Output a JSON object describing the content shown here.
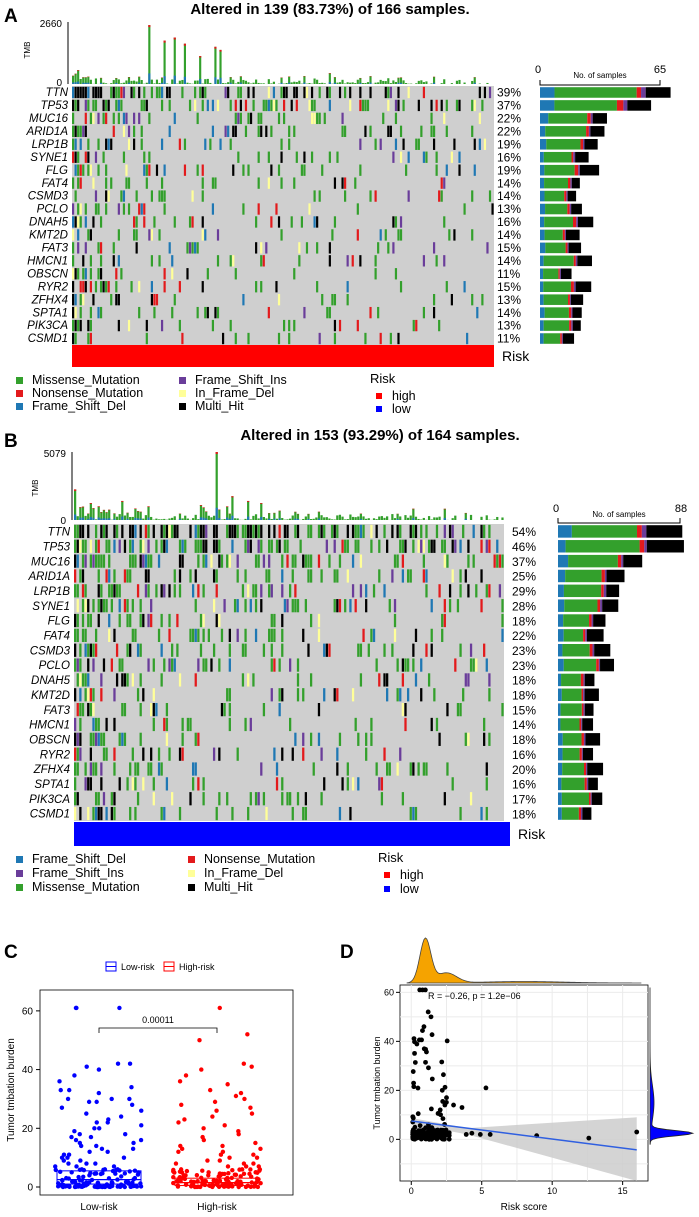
{
  "colors": {
    "missense": "#33a02c",
    "nonsense": "#e31a1c",
    "frame_shift_del": "#1f78b4",
    "frame_shift_ins": "#6a3d9a",
    "in_frame_del": "#ffff99",
    "multi_hit": "#000000",
    "risk_high": "#ff0000",
    "risk_low": "#0000ff",
    "density": "#f5a300",
    "lowrisk_box": "#0000ff",
    "highrisk_box": "#ff0000",
    "fit_line": "#2f5fe0",
    "empty_cell": "#cfcfcf"
  },
  "chart_data": [
    {
      "panel": "A",
      "type": "oncoplot",
      "title": "Altered in 139 (83.73%) of 166 samples.",
      "tmb_label": "TMB",
      "tmb_axis": [
        "2660",
        "0"
      ],
      "tmb_max": 2660,
      "samples_axis_label": "No. of samples",
      "samples_axis": [
        "0",
        "65"
      ],
      "samples_max": 65,
      "n_samples": 166,
      "genes": [
        "TTN",
        "TP53",
        "MUC16",
        "ARID1A",
        "LRP1B",
        "SYNE1",
        "FLG",
        "FAT4",
        "CSMD3",
        "PCLO",
        "DNAH5",
        "KMT2D",
        "FAT3",
        "HMCN1",
        "OBSCN",
        "RYR2",
        "ZFHX4",
        "SPTA1",
        "PIK3CA",
        "CSMD1"
      ],
      "percents": [
        "39%",
        "37%",
        "22%",
        "22%",
        "19%",
        "16%",
        "19%",
        "14%",
        "14%",
        "13%",
        "16%",
        "14%",
        "15%",
        "14%",
        "11%",
        "15%",
        "13%",
        "14%",
        "13%",
        "11%"
      ],
      "gene_counts": [
        65,
        61,
        36,
        36,
        32,
        27,
        31,
        23,
        23,
        22,
        27,
        23,
        25,
        23,
        18,
        25,
        22,
        23,
        22,
        18
      ],
      "risk_label": "Risk",
      "risk_value": "high",
      "legend": [
        "Missense_Mutation",
        "Nonsense_Mutation",
        "Frame_Shift_Del",
        "Frame_Shift_Ins",
        "In_Frame_Del",
        "Multi_Hit"
      ],
      "legend_keys": [
        "missense",
        "nonsense",
        "frame_shift_del",
        "frame_shift_ins",
        "in_frame_del",
        "multi_hit"
      ],
      "risk_legend_title": "Risk",
      "risk_legend": [
        "high",
        "low"
      ]
    },
    {
      "panel": "B",
      "type": "oncoplot",
      "title": "Altered in 153 (93.29%) of 164 samples.",
      "tmb_label": "TMB",
      "tmb_axis": [
        "5079",
        "0"
      ],
      "tmb_max": 5079,
      "samples_axis_label": "No. of samples",
      "samples_axis": [
        "0",
        "88"
      ],
      "samples_max": 88,
      "n_samples": 164,
      "genes": [
        "TTN",
        "TP53",
        "MUC16",
        "ARID1A",
        "LRP1B",
        "SYNE1",
        "FLG",
        "FAT4",
        "CSMD3",
        "PCLO",
        "DNAH5",
        "KMT2D",
        "FAT3",
        "HMCN1",
        "OBSCN",
        "RYR2",
        "ZFHX4",
        "SPTA1",
        "PIK3CA",
        "CSMD1"
      ],
      "percents": [
        "54%",
        "46%",
        "37%",
        "25%",
        "29%",
        "28%",
        "18%",
        "22%",
        "23%",
        "23%",
        "18%",
        "18%",
        "15%",
        "14%",
        "18%",
        "16%",
        "20%",
        "16%",
        "17%",
        "18%"
      ],
      "gene_counts": [
        88,
        76,
        60,
        41,
        48,
        46,
        30,
        36,
        38,
        38,
        30,
        30,
        25,
        23,
        30,
        26,
        33,
        26,
        28,
        30
      ],
      "risk_label": "Risk",
      "risk_value": "low",
      "legend": [
        "Frame_Shift_Del",
        "Frame_Shift_Ins",
        "Missense_Mutation",
        "Nonsense_Mutation",
        "In_Frame_Del",
        "Multi_Hit"
      ],
      "legend_keys": [
        "frame_shift_del",
        "frame_shift_ins",
        "missense",
        "nonsense",
        "in_frame_del",
        "multi_hit"
      ],
      "risk_legend_title": "Risk",
      "risk_legend": [
        "high",
        "low"
      ]
    },
    {
      "panel": "C",
      "type": "box",
      "legend": [
        "Low-risk",
        "High-risk"
      ],
      "categories": [
        "Low-risk",
        "High-risk"
      ],
      "ylabel": "Tumor tmbation burden",
      "ylim": [
        0,
        65
      ],
      "yticks": [
        "0",
        "20",
        "40",
        "60"
      ],
      "pvalue": "0.00011",
      "boxes": [
        {
          "name": "Low-risk",
          "q1": 1.0,
          "median": 2.5,
          "q3": 5.5
        },
        {
          "name": "High-risk",
          "q1": 0.5,
          "median": 1.5,
          "q3": 3.0
        }
      ],
      "outliers_low": [
        61,
        61,
        61,
        42,
        42,
        41,
        40,
        38,
        36,
        34,
        33,
        33,
        32,
        30,
        30,
        30,
        29,
        29,
        28,
        27,
        26,
        25,
        24,
        23,
        22,
        22,
        21,
        20,
        20,
        19,
        18,
        18,
        17,
        17,
        16,
        16,
        15,
        15,
        14,
        14,
        13,
        13,
        12,
        12,
        11,
        11,
        10,
        10,
        10,
        9,
        9,
        8,
        8,
        8,
        7,
        7,
        7,
        6,
        6,
        6
      ],
      "outliers_high": [
        61,
        52,
        50,
        42,
        41,
        40,
        38,
        36,
        35,
        33,
        32,
        31,
        30,
        29,
        28,
        27,
        26,
        25,
        24,
        23,
        22,
        21,
        20,
        19,
        18,
        17,
        16,
        15,
        14,
        14,
        13,
        13,
        12,
        12,
        11,
        11,
        10,
        10,
        9,
        9,
        8,
        8,
        8,
        7,
        7,
        7,
        6,
        6,
        6,
        5,
        5,
        5,
        4,
        4
      ]
    },
    {
      "panel": "D",
      "type": "scatter",
      "xlabel": "Risk score",
      "ylabel": "Tumor tmbation burden",
      "annotation": "R = −0.26, p = 1.2e−06",
      "xlim": [
        -0.8,
        16.8
      ],
      "ylim": [
        -17,
        63
      ],
      "xticks": [
        "0",
        "5",
        "10",
        "15"
      ],
      "yticks": [
        "0",
        "20",
        "40",
        "60"
      ],
      "fit": {
        "x0": 0.0,
        "y0": 7.5,
        "x1": 16.0,
        "y1": -4.3
      },
      "sparse_points": [
        {
          "x": 3.9,
          "y": 2.0
        },
        {
          "x": 4.3,
          "y": 2.5
        },
        {
          "x": 4.9,
          "y": 2.0
        },
        {
          "x": 5.6,
          "y": 2.0
        },
        {
          "x": 5.3,
          "y": 21.0
        },
        {
          "x": 3.6,
          "y": 13.0
        },
        {
          "x": 8.9,
          "y": 1.5
        },
        {
          "x": 12.6,
          "y": 0.5
        },
        {
          "x": 16.0,
          "y": 3.0
        },
        {
          "x": 2.5,
          "y": 17.0
        },
        {
          "x": 3.0,
          "y": 14.0
        },
        {
          "x": 2.2,
          "y": 20.0
        }
      ]
    }
  ],
  "panel_labels": [
    "A",
    "B",
    "C",
    "D"
  ]
}
